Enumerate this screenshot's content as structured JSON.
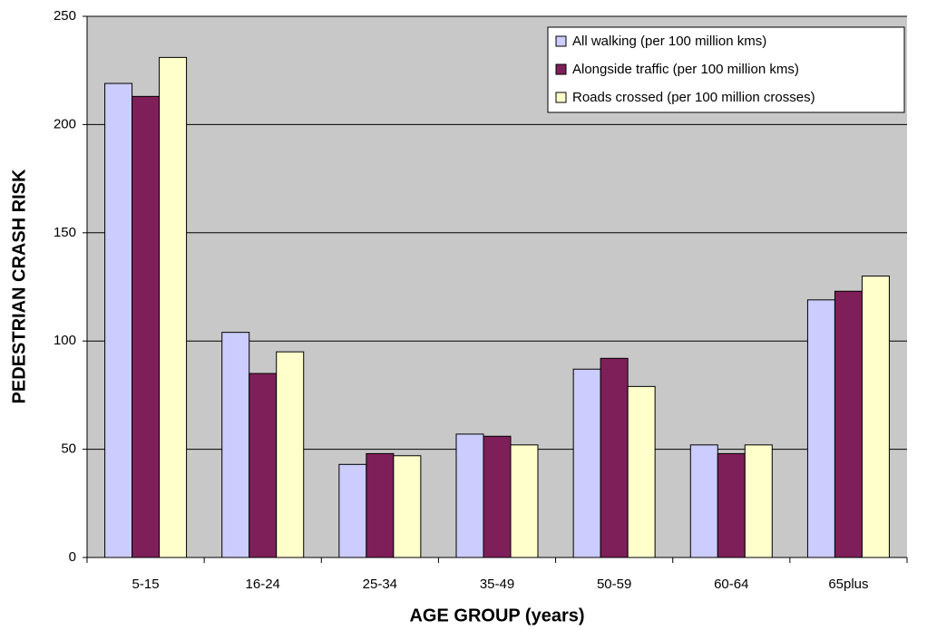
{
  "chart_data": {
    "type": "bar",
    "x_label": "AGE GROUP (years)",
    "y_label": "PEDESTRIAN CRASH RISK",
    "categories": [
      "5-15",
      "16-24",
      "25-34",
      "35-49",
      "50-59",
      "60-64",
      "65plus"
    ],
    "series": [
      {
        "name": "All walking (per 100 million kms)",
        "color": "#ccccff",
        "values": [
          219,
          104,
          43,
          57,
          87,
          52,
          119
        ]
      },
      {
        "name": "Alongside traffic (per 100 million kms)",
        "color": "#7f1f5a",
        "values": [
          213,
          85,
          48,
          56,
          92,
          48,
          123
        ]
      },
      {
        "name": "Roads crossed (per 100 million crosses)",
        "color": "#ffffcc",
        "values": [
          231,
          95,
          47,
          52,
          79,
          52,
          130
        ]
      }
    ],
    "ylim": [
      0,
      250
    ],
    "yticks": [
      0,
      50,
      100,
      150,
      200,
      250
    ],
    "grid": true,
    "legend": "upper right",
    "plot_background": "#c8c8c8"
  }
}
